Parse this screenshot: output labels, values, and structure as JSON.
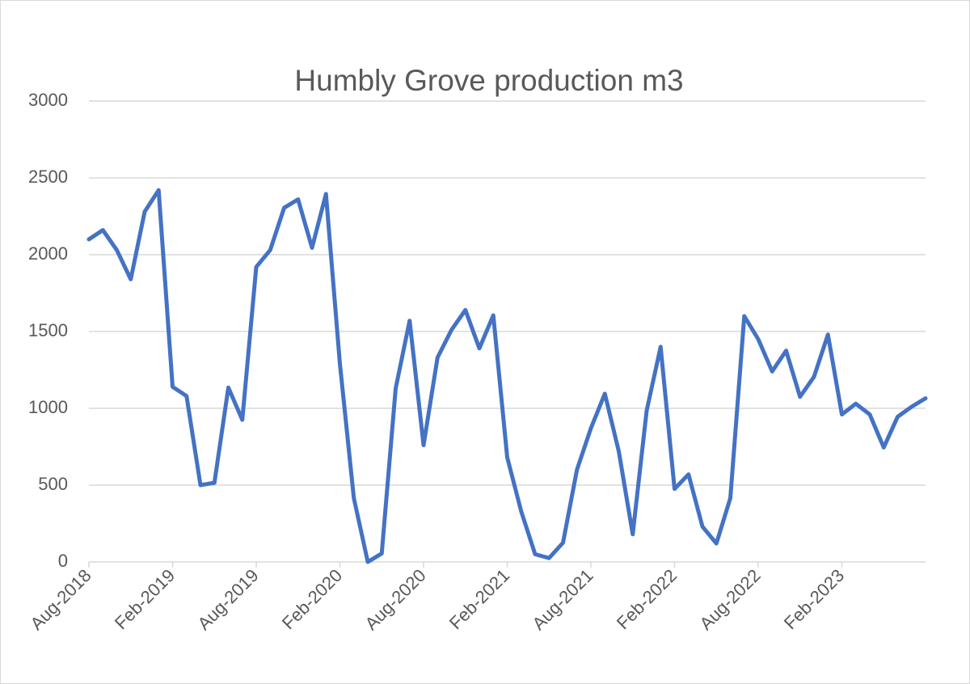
{
  "chart_data": {
    "type": "line",
    "title": "Humbly Grove production m3",
    "categories": [
      "Aug-2018",
      null,
      null,
      null,
      null,
      null,
      "Feb-2019",
      null,
      null,
      null,
      null,
      null,
      "Aug-2019",
      null,
      null,
      null,
      null,
      null,
      "Feb-2020",
      null,
      null,
      null,
      null,
      null,
      "Aug-2020",
      null,
      null,
      null,
      null,
      null,
      "Feb-2021",
      null,
      null,
      null,
      null,
      null,
      "Aug-2021",
      null,
      null,
      null,
      null,
      null,
      "Feb-2022",
      null,
      null,
      null,
      null,
      null,
      "Aug-2022",
      null,
      null,
      null,
      null,
      null,
      "Feb-2023",
      null,
      null,
      null,
      null,
      null,
      null
    ],
    "series": [
      {
        "name": "Humbly Grove production m3",
        "color": "#4472c4",
        "values": [
          2100,
          2160,
          2030,
          1840,
          2280,
          2420,
          1140,
          1080,
          500,
          515,
          1135,
          925,
          1920,
          2030,
          2305,
          2360,
          2045,
          2395,
          1290,
          415,
          0,
          55,
          1130,
          1570,
          760,
          1330,
          1510,
          1640,
          1390,
          1605,
          680,
          330,
          50,
          25,
          125,
          600,
          870,
          1095,
          720,
          180,
          985,
          1400,
          475,
          570,
          230,
          120,
          415,
          1600,
          1450,
          1240,
          1375,
          1075,
          1205,
          1480,
          960,
          1030,
          960,
          745,
          945,
          1010,
          1065
        ]
      }
    ],
    "ylim": [
      0,
      3000
    ],
    "yticks": [
      0,
      500,
      1000,
      1500,
      2000,
      2500,
      3000
    ],
    "grid": true
  }
}
